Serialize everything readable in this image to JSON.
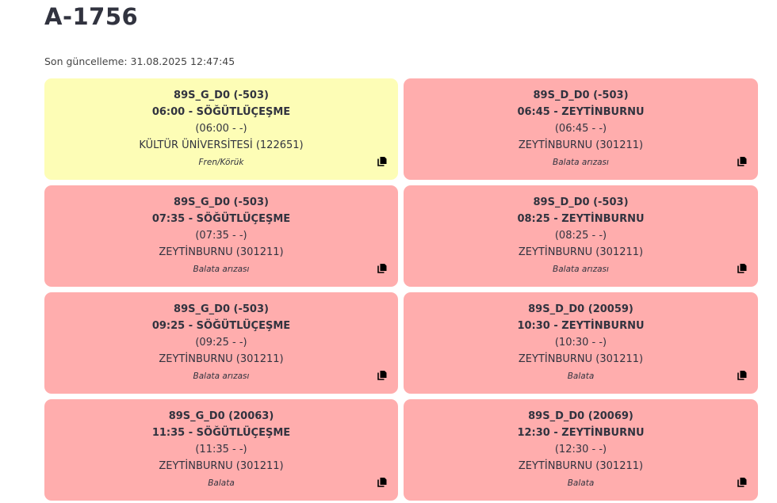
{
  "title": "A-1756",
  "last_updated": "Son güncelleme: 31.08.2025 12:47:45",
  "colors": {
    "warning": "#fdfdb6",
    "error": "#ffadad"
  },
  "cards": [
    {
      "route": "89S_G_D0 (-503)",
      "departure": "06:00 - SÖĞÜTLÜÇEŞME",
      "time": "(06:00 - -)",
      "stop": "KÜLTÜR ÜNİVERSİTESİ (122651)",
      "note": "Fren/Körük",
      "status": "warning"
    },
    {
      "route": "89S_D_D0 (-503)",
      "departure": "06:45 - ZEYTİNBURNU",
      "time": "(06:45 - -)",
      "stop": "ZEYTİNBURNU (301211)",
      "note": "Balata arızası",
      "status": "error"
    },
    {
      "route": "89S_G_D0 (-503)",
      "departure": "07:35 - SÖĞÜTLÜÇEŞME",
      "time": "(07:35 - -)",
      "stop": "ZEYTİNBURNU (301211)",
      "note": "Balata arızası",
      "status": "error"
    },
    {
      "route": "89S_D_D0 (-503)",
      "departure": "08:25 - ZEYTİNBURNU",
      "time": "(08:25 - -)",
      "stop": "ZEYTİNBURNU (301211)",
      "note": "Balata arızası",
      "status": "error"
    },
    {
      "route": "89S_G_D0 (-503)",
      "departure": "09:25 - SÖĞÜTLÜÇEŞME",
      "time": "(09:25 - -)",
      "stop": "ZEYTİNBURNU (301211)",
      "note": "Balata arızası",
      "status": "error"
    },
    {
      "route": "89S_D_D0 (20059)",
      "departure": "10:30 - ZEYTİNBURNU",
      "time": "(10:30 - -)",
      "stop": "ZEYTİNBURNU (301211)",
      "note": "Balata",
      "status": "error"
    },
    {
      "route": "89S_G_D0 (20063)",
      "departure": "11:35 - SÖĞÜTLÜÇEŞME",
      "time": "(11:35 - -)",
      "stop": "ZEYTİNBURNU (301211)",
      "note": "Balata",
      "status": "error"
    },
    {
      "route": "89S_D_D0 (20069)",
      "departure": "12:30 - ZEYTİNBURNU",
      "time": "(12:30 - -)",
      "stop": "ZEYTİNBURNU (301211)",
      "note": "Balata",
      "status": "error"
    }
  ]
}
